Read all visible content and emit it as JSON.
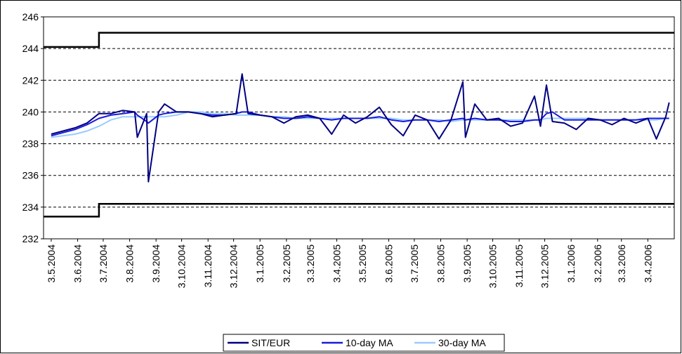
{
  "chart_data": {
    "type": "line",
    "x": [
      "3.5.2004",
      "17.5.2004",
      "31.5.2004",
      "14.6.2004",
      "28.6.2004",
      "12.7.2004",
      "26.7.2004",
      "9.8.2004",
      "12.8.2004",
      "23.8.2004",
      "25.8.2004",
      "6.9.2004",
      "13.9.2004",
      "27.9.2004",
      "11.10.2004",
      "25.10.2004",
      "8.11.2004",
      "22.11.2004",
      "6.12.2004",
      "13.12.2004",
      "20.12.2004",
      "3.1.2005",
      "17.1.2005",
      "31.1.2005",
      "14.2.2005",
      "28.2.2005",
      "14.3.2005",
      "28.3.2005",
      "11.4.2005",
      "25.4.2005",
      "9.5.2005",
      "23.5.2005",
      "6.6.2005",
      "20.6.2005",
      "4.7.2005",
      "18.7.2005",
      "1.8.2005",
      "15.8.2005",
      "29.8.2005",
      "1.9.2005",
      "12.9.2005",
      "26.9.2005",
      "10.10.2005",
      "24.10.2005",
      "7.11.2005",
      "21.11.2005",
      "28.11.2005",
      "5.12.2005",
      "12.12.2005",
      "26.12.2005",
      "9.1.2006",
      "23.1.2006",
      "6.2.2006",
      "20.2.2006",
      "6.3.2006",
      "20.3.2006",
      "3.4.2006",
      "13.4.2006",
      "24.4.2006",
      "28.4.2006"
    ],
    "series": [
      {
        "name": "SIT/EUR",
        "color": "#000080",
        "values": [
          238.6,
          238.8,
          239.0,
          239.3,
          239.9,
          239.9,
          240.1,
          240.0,
          238.4,
          239.9,
          235.6,
          240.0,
          240.5,
          240.0,
          240.0,
          239.9,
          239.7,
          239.8,
          239.9,
          242.4,
          239.9,
          239.8,
          239.7,
          239.3,
          239.7,
          239.8,
          239.6,
          238.6,
          239.8,
          239.3,
          239.7,
          240.3,
          239.2,
          238.5,
          239.8,
          239.5,
          238.3,
          239.5,
          241.9,
          238.4,
          240.5,
          239.5,
          239.6,
          239.1,
          239.3,
          241.0,
          239.1,
          241.7,
          239.4,
          239.3,
          238.9,
          239.6,
          239.5,
          239.2,
          239.6,
          239.3,
          239.6,
          238.3,
          239.7,
          240.6
        ]
      },
      {
        "name": "10-day MA",
        "color": "#1a1adc",
        "values": [
          238.5,
          238.7,
          238.9,
          239.2,
          239.6,
          239.8,
          239.9,
          240.0,
          239.8,
          239.4,
          239.3,
          239.8,
          239.9,
          240.0,
          240.0,
          239.9,
          239.8,
          239.8,
          239.9,
          240.0,
          240.0,
          239.8,
          239.7,
          239.6,
          239.6,
          239.7,
          239.6,
          239.5,
          239.6,
          239.6,
          239.6,
          239.7,
          239.5,
          239.4,
          239.5,
          239.5,
          239.4,
          239.5,
          239.6,
          239.5,
          239.6,
          239.5,
          239.5,
          239.4,
          239.4,
          239.5,
          239.5,
          239.9,
          240.0,
          239.5,
          239.5,
          239.5,
          239.5,
          239.5,
          239.5,
          239.5,
          239.6,
          239.6,
          239.6,
          239.6
        ]
      },
      {
        "name": "30-day MA",
        "color": "#99ccff",
        "values": [
          238.4,
          238.5,
          238.6,
          238.8,
          239.1,
          239.5,
          239.7,
          239.7,
          239.7,
          239.7,
          239.7,
          239.7,
          239.7,
          239.8,
          240.0,
          240.0,
          239.9,
          239.9,
          239.8,
          239.8,
          239.8,
          239.8,
          239.7,
          239.7,
          239.6,
          239.6,
          239.6,
          239.6,
          239.6,
          239.6,
          239.6,
          239.6,
          239.6,
          239.5,
          239.5,
          239.5,
          239.5,
          239.4,
          239.5,
          239.5,
          239.5,
          239.5,
          239.5,
          239.5,
          239.5,
          239.5,
          239.5,
          239.6,
          239.6,
          239.6,
          239.6,
          239.6,
          239.5,
          239.5,
          239.5,
          239.5,
          239.5,
          239.5,
          239.6,
          239.6
        ]
      }
    ],
    "reference_lines": [
      {
        "color": "#000000",
        "x": [
          "24.4.2004",
          "28.6.2004",
          "28.6.2004",
          "4.5.2006"
        ],
        "values": [
          244.1,
          244.1,
          245.0,
          245.0
        ]
      },
      {
        "color": "#000000",
        "x": [
          "24.4.2004",
          "28.6.2004",
          "28.6.2004",
          "4.5.2006"
        ],
        "values": [
          233.4,
          233.4,
          234.2,
          234.2
        ]
      }
    ],
    "xlim": [
      "24.4.2004",
      "4.5.2006"
    ],
    "xticks": [
      "3.5.2004",
      "3.6.2004",
      "3.7.2004",
      "3.8.2004",
      "3.9.2004",
      "3.10.2004",
      "3.11.2004",
      "3.12.2004",
      "3.1.2005",
      "3.2.2005",
      "3.3.2005",
      "3.4.2005",
      "3.5.2005",
      "3.6.2005",
      "3.7.2005",
      "3.8.2005",
      "3.9.2005",
      "3.10.2005",
      "3.11.2005",
      "3.12.2005",
      "3.1.2006",
      "3.2.2006",
      "3.3.2006",
      "3.4.2006"
    ],
    "ylim": [
      232,
      246
    ],
    "yticks": [
      232,
      234,
      236,
      238,
      240,
      242,
      244,
      246
    ],
    "grid": true
  }
}
